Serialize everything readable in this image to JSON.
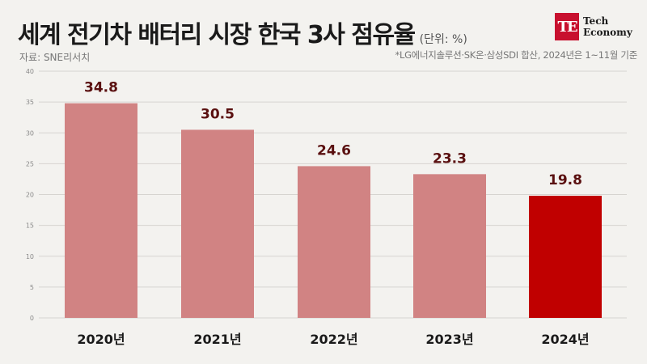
{
  "header": {
    "title": "세계 전기차 배터리 시장 한국 3사 점유율",
    "unit": "(단위: %)",
    "source": "자료: SNE리서치",
    "note": "*LG에너지솔루션·SK온·삼성SDI 합산, 2024년은 1~11월 기준"
  },
  "logo": {
    "mark": "TE",
    "line1": "Tech",
    "line2": "Economy",
    "color": "#c8102e"
  },
  "colors": {
    "bar": "#d18383",
    "highlight": "#c00000",
    "value_label": "#5a1010",
    "grid": "#d6d4d0",
    "tick": "#8a8a8a"
  },
  "chart_data": {
    "type": "bar",
    "categories": [
      "2020년",
      "2021년",
      "2022년",
      "2023년",
      "2024년"
    ],
    "values": [
      34.8,
      30.5,
      24.6,
      23.3,
      19.8
    ],
    "highlight_index": 4,
    "title": "세계 전기차 배터리 시장 한국 3사 점유율",
    "xlabel": "",
    "ylabel": "",
    "ylim": [
      0,
      40
    ],
    "yticks": [
      0,
      5,
      10,
      15,
      20,
      25,
      30,
      35,
      40
    ],
    "grid": true,
    "legend": "none"
  }
}
